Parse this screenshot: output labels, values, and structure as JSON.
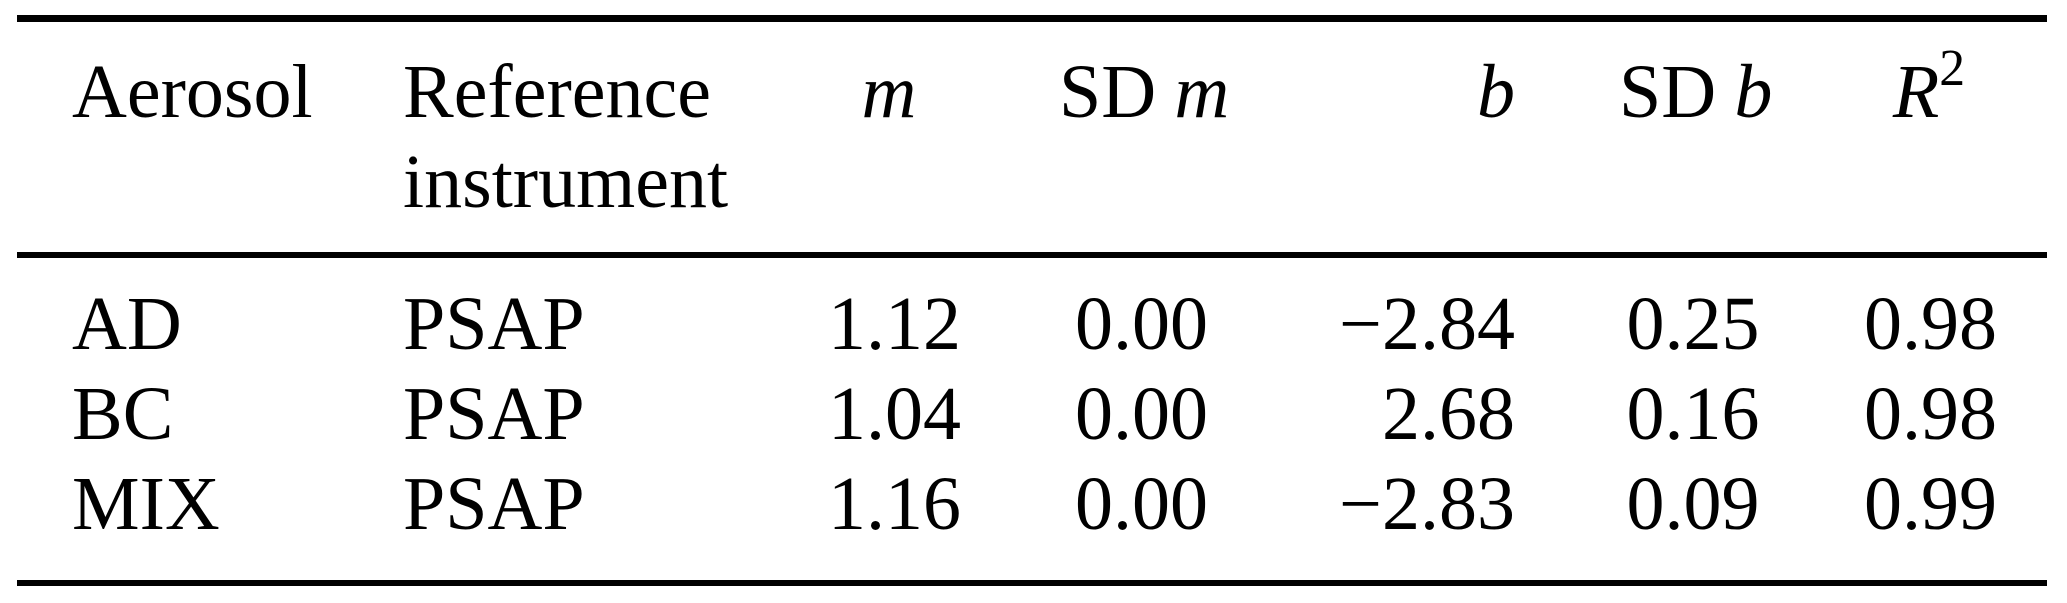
{
  "style": {
    "background": "#ffffff",
    "text_color": "#000000",
    "rule_color": "#000000"
  },
  "table": {
    "header": {
      "aerosol": "Aerosol",
      "reference_line1": "Reference",
      "reference_line2": "instrument",
      "m_symbol": "m",
      "sd_m_prefix": "SD",
      "sd_m_symbol": "m",
      "b_symbol": "b",
      "sd_b_prefix": "SD",
      "sd_b_symbol": "b",
      "r2_base": "R",
      "r2_sup": "2"
    },
    "rows": [
      {
        "aerosol": "AD",
        "reference_instrument": "PSAP",
        "m": "1.12",
        "sd_m": "0.00",
        "b": "−2.84",
        "sd_b": "0.25",
        "r2": "0.98"
      },
      {
        "aerosol": "BC",
        "reference_instrument": "PSAP",
        "m": "1.04",
        "sd_m": "0.00",
        "b": "2.68",
        "sd_b": "0.16",
        "r2": "0.98"
      },
      {
        "aerosol": "MIX",
        "reference_instrument": "PSAP",
        "m": "1.16",
        "sd_m": "0.00",
        "b": "−2.83",
        "sd_b": "0.09",
        "r2": "0.99"
      }
    ]
  }
}
